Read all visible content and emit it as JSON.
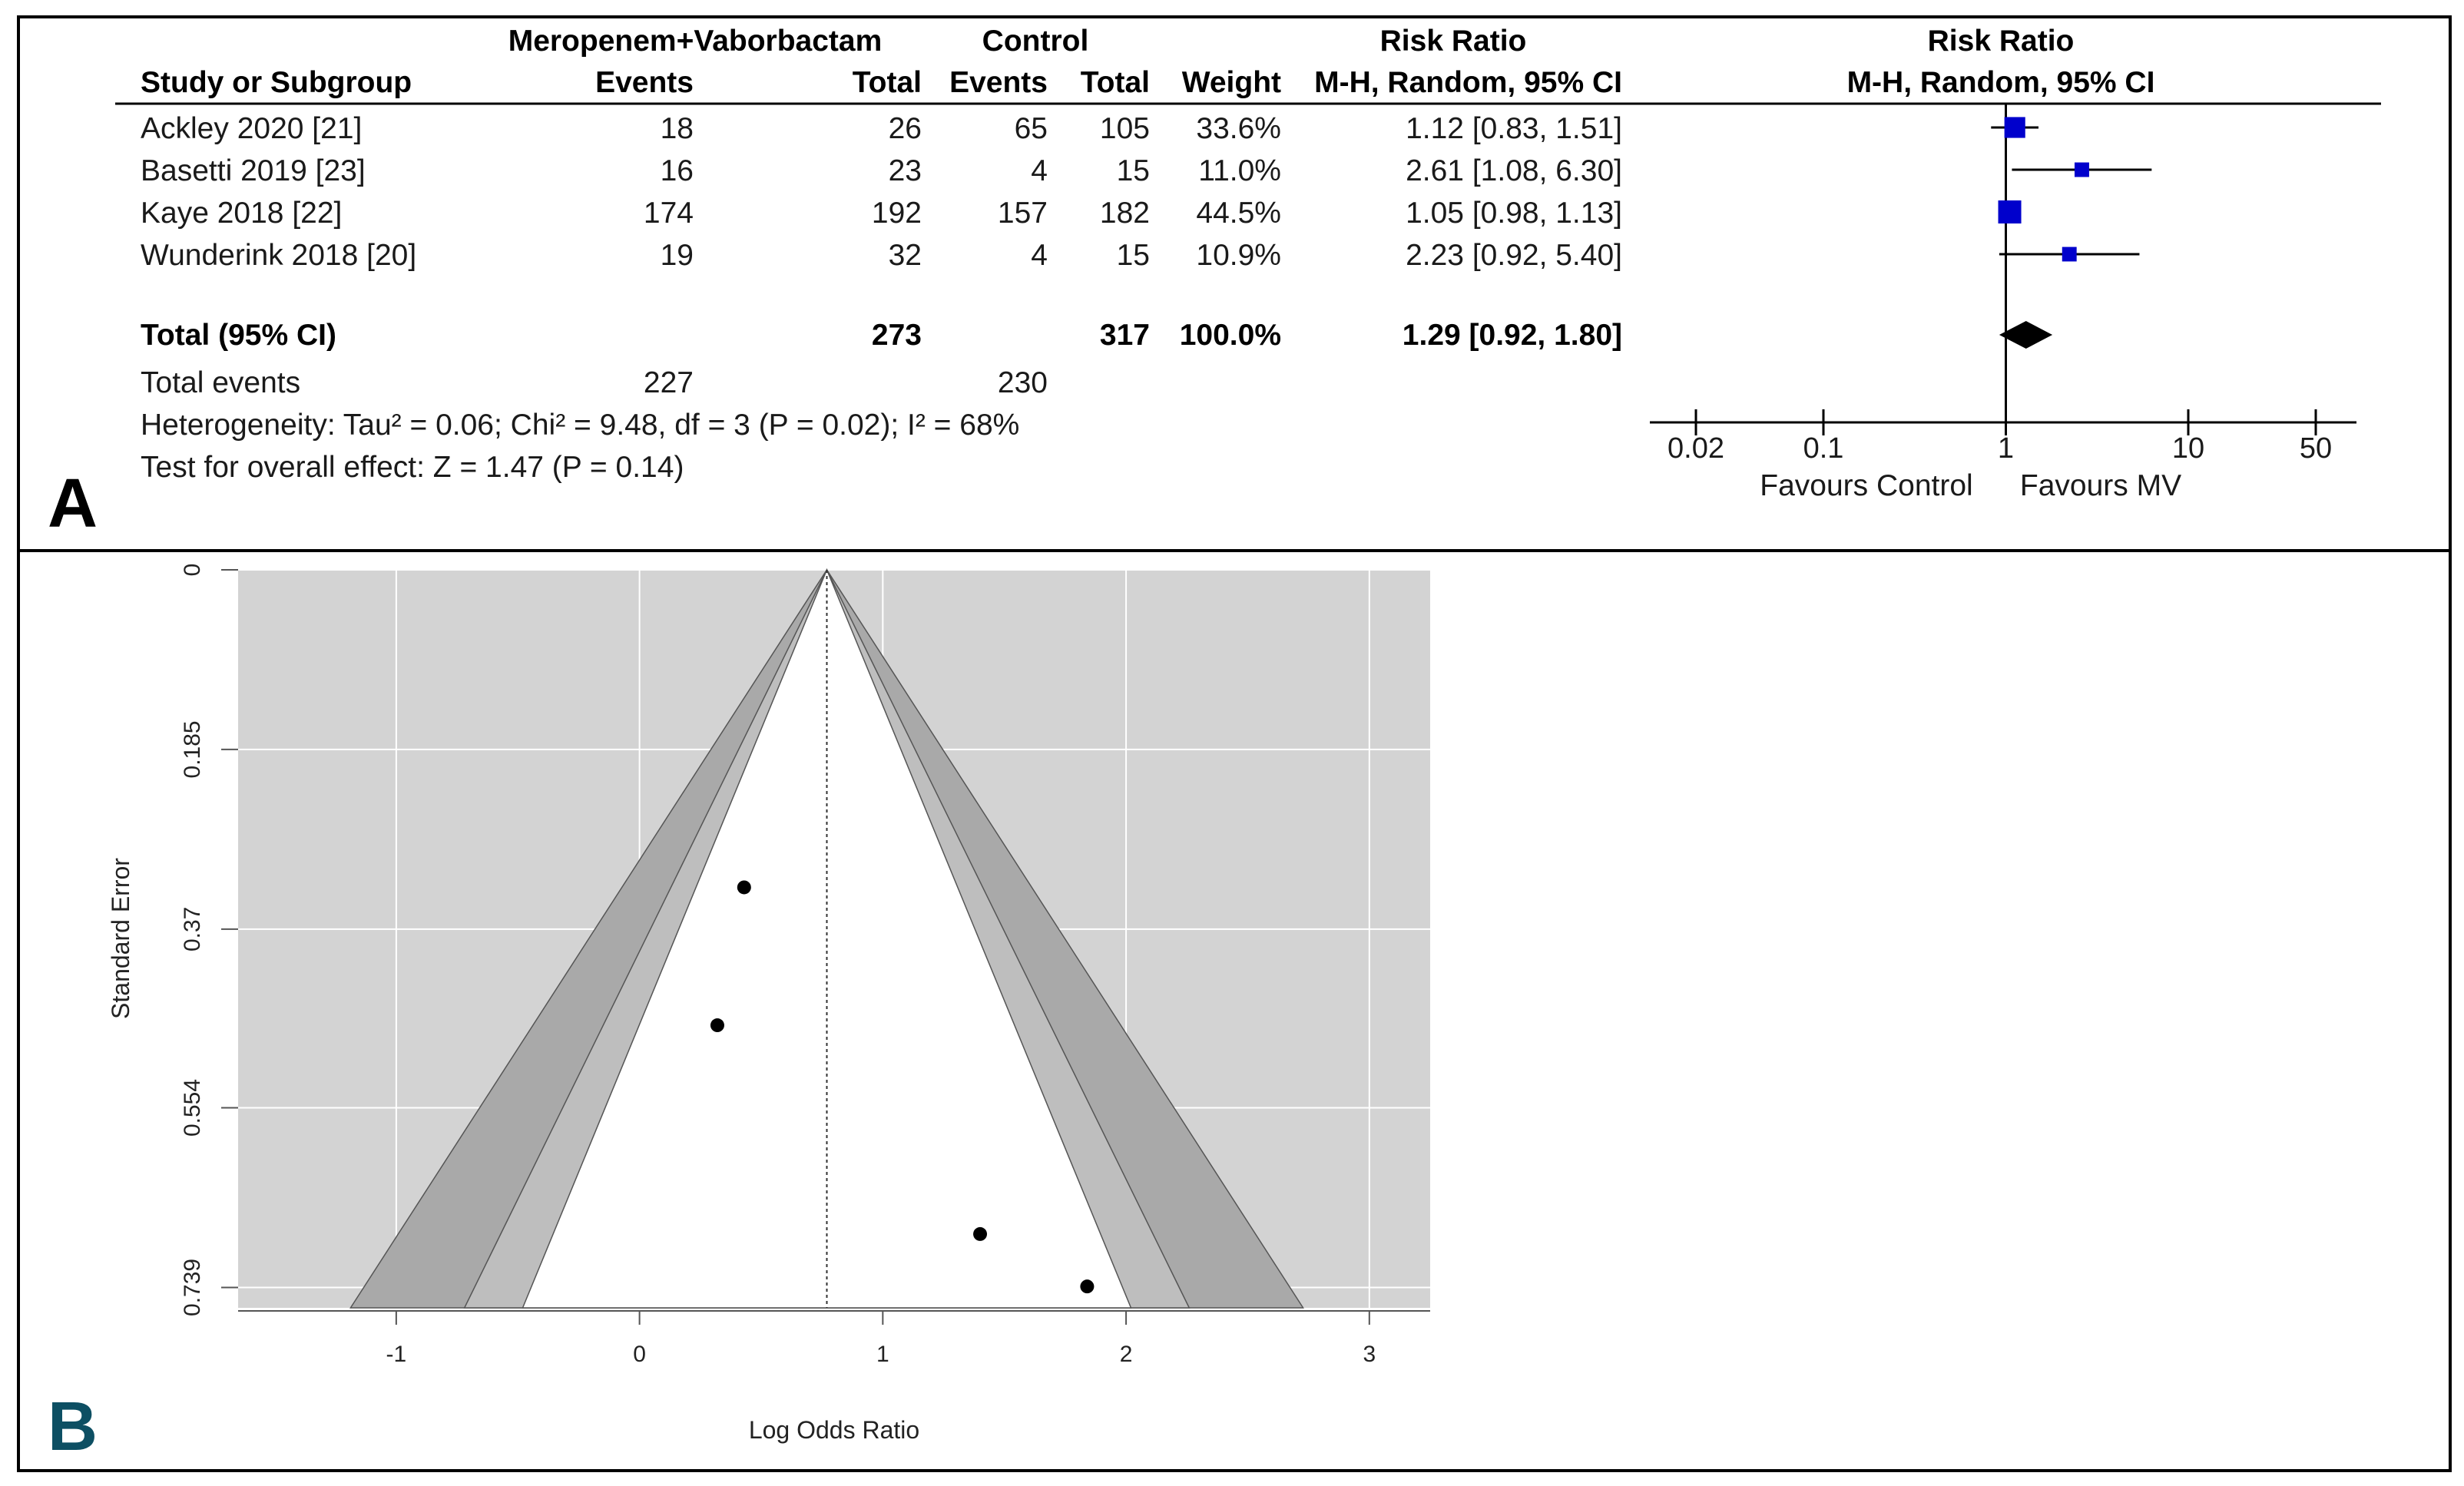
{
  "panel_a": {
    "letter": "A",
    "headers": {
      "group1_title": "Meropenem+Vaborbactam",
      "group2_title": "Control",
      "rr_title": "Risk Ratio",
      "plot_title": "Risk Ratio",
      "study": "Study or Subgroup",
      "events1": "Events",
      "total1": "Total",
      "events2": "Events",
      "total2": "Total",
      "weight": "Weight",
      "method": "M-H, Random, 95% CI",
      "plot_method": "M-H, Random, 95% CI"
    },
    "total_row": {
      "label": "Total (95% CI)",
      "total1": "273",
      "total2": "317",
      "weight": "100.0%",
      "ci": "1.29 [0.92, 1.80]"
    },
    "total_events": {
      "label": "Total events",
      "events1": "227",
      "events2": "230"
    },
    "heterogeneity": "Heterogeneity: Tau² = 0.06; Chi² = 9.48, df = 3 (P = 0.02); I² = 68%",
    "overall_effect": "Test for overall effect: Z = 1.47 (P = 0.14)",
    "favours_left": "Favours Control",
    "favours_right": "Favours MV"
  },
  "panel_b": {
    "letter": "B",
    "xlabel": "Log Odds Ratio",
    "ylabel": "Standard Error"
  },
  "colors": {
    "square": "#0000cc",
    "diamond": "#000000",
    "funnel_bg": "#d3d3d3",
    "funnel_dark": "#a9a9a9",
    "funnel_light": "#bebebe",
    "funnel_inner": "#ffffff"
  },
  "chart_data": [
    {
      "type": "forest",
      "scale": "log",
      "xlim": [
        0.02,
        50
      ],
      "ticks": [
        {
          "value": 0.02,
          "label": "0.02"
        },
        {
          "value": 0.1,
          "label": "0.1"
        },
        {
          "value": 1,
          "label": "1"
        },
        {
          "value": 10,
          "label": "10"
        },
        {
          "value": 50,
          "label": "50"
        }
      ],
      "studies": [
        {
          "name": "Ackley 2020 [21]",
          "events1": "18",
          "total1": "26",
          "events2": "65",
          "total2": "105",
          "weight_label": "33.6%",
          "ci_label": "1.12 [0.83, 1.51]",
          "rr": 1.12,
          "lo": 0.83,
          "hi": 1.51,
          "weight": 33.6
        },
        {
          "name": "Basetti 2019 [23]",
          "events1": "16",
          "total1": "23",
          "events2": "4",
          "total2": "15",
          "weight_label": "11.0%",
          "ci_label": "2.61 [1.08, 6.30]",
          "rr": 2.61,
          "lo": 1.08,
          "hi": 6.3,
          "weight": 11.0
        },
        {
          "name": "Kaye 2018 [22]",
          "events1": "174",
          "total1": "192",
          "events2": "157",
          "total2": "182",
          "weight_label": "44.5%",
          "ci_label": "1.05 [0.98, 1.13]",
          "rr": 1.05,
          "lo": 0.98,
          "hi": 1.13,
          "weight": 44.5
        },
        {
          "name": "Wunderink 2018 [20]",
          "events1": "19",
          "total1": "32",
          "events2": "4",
          "total2": "15",
          "weight_label": "10.9%",
          "ci_label": "2.23 [0.92, 5.40]",
          "rr": 2.23,
          "lo": 0.92,
          "hi": 5.4,
          "weight": 10.9
        }
      ],
      "pooled": {
        "rr": 1.29,
        "lo": 0.92,
        "hi": 1.8
      }
    },
    {
      "type": "scatter",
      "subtype": "funnel",
      "xlabel": "Log Odds Ratio",
      "ylabel": "Standard Error",
      "xlim": [
        -1.65,
        3.25
      ],
      "ylim": [
        0,
        0.76
      ],
      "y_reversed": true,
      "xticks": [
        -1,
        0,
        1,
        2,
        3
      ],
      "yticks": [
        0,
        0.185,
        0.37,
        0.554,
        0.739
      ],
      "center": 0.77,
      "points": [
        {
          "x": 0.43,
          "y": 0.327
        },
        {
          "x": 0.32,
          "y": 0.469
        },
        {
          "x": 1.4,
          "y": 0.684
        },
        {
          "x": 1.84,
          "y": 0.738
        }
      ]
    }
  ]
}
